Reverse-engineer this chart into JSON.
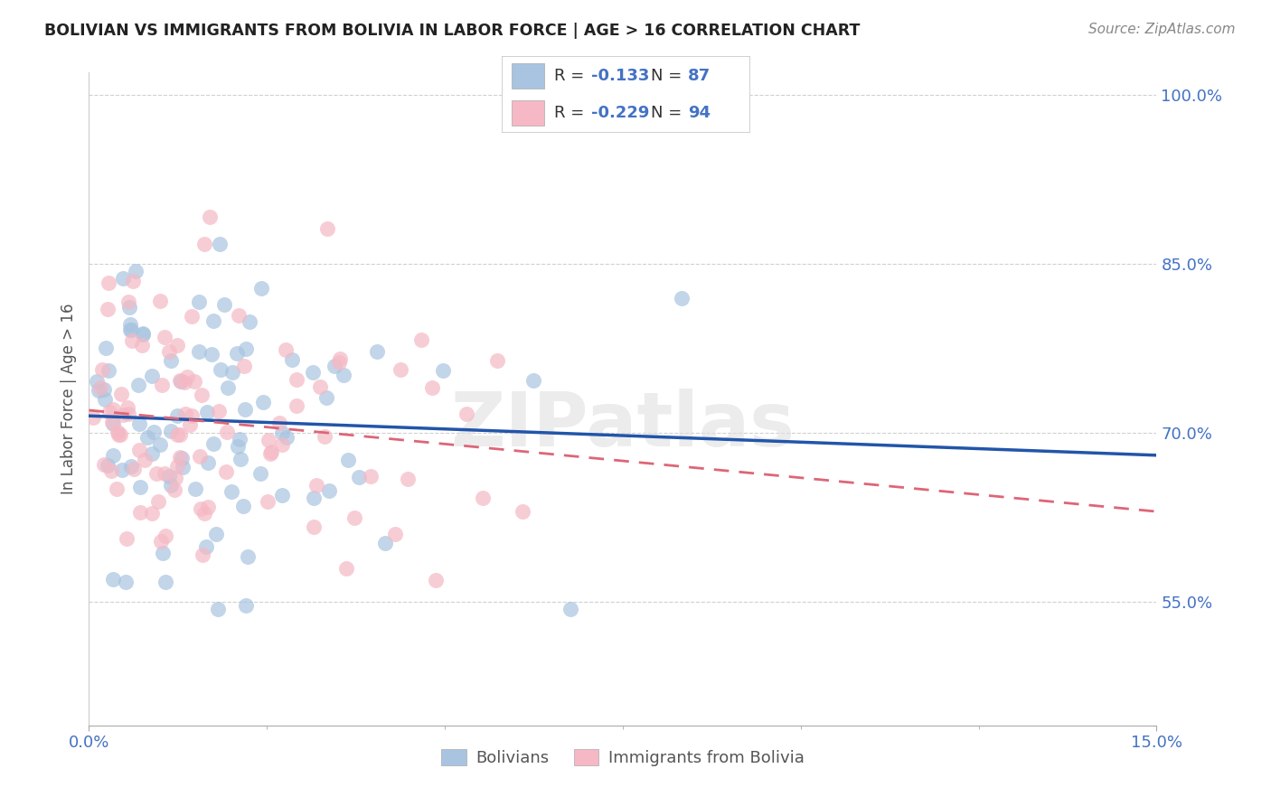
{
  "title": "BOLIVIAN VS IMMIGRANTS FROM BOLIVIA IN LABOR FORCE | AGE > 16 CORRELATION CHART",
  "source": "Source: ZipAtlas.com",
  "ylabel": "In Labor Force | Age > 16",
  "xlim": [
    0.0,
    0.15
  ],
  "ylim": [
    0.44,
    1.02
  ],
  "ytick_positions": [
    0.55,
    0.7,
    0.85,
    1.0
  ],
  "ytick_labels": [
    "55.0%",
    "70.0%",
    "85.0%",
    "100.0%"
  ],
  "xtick_positions": [
    0.0,
    0.15
  ],
  "xtick_labels": [
    "0.0%",
    "15.0%"
  ],
  "grid_color": "#d0d0d0",
  "blue_color": "#a8c4e0",
  "pink_color": "#f5b8c4",
  "blue_line_color": "#2255aa",
  "pink_line_color": "#dd6677",
  "R_blue": -0.133,
  "N_blue": 87,
  "R_pink": -0.229,
  "N_pink": 94,
  "watermark": "ZIPatlas",
  "legend_label_blue": "Bolivians",
  "legend_label_pink": "Immigrants from Bolivia",
  "title_color": "#222222",
  "axis_tick_color": "#4472c4",
  "legend_R_color": "#222222",
  "legend_N_color": "#4472c4",
  "source_color": "#888888",
  "ylabel_color": "#555555",
  "blue_line_y0": 0.715,
  "blue_line_y1": 0.68,
  "pink_line_y0": 0.72,
  "pink_line_y1": 0.63
}
